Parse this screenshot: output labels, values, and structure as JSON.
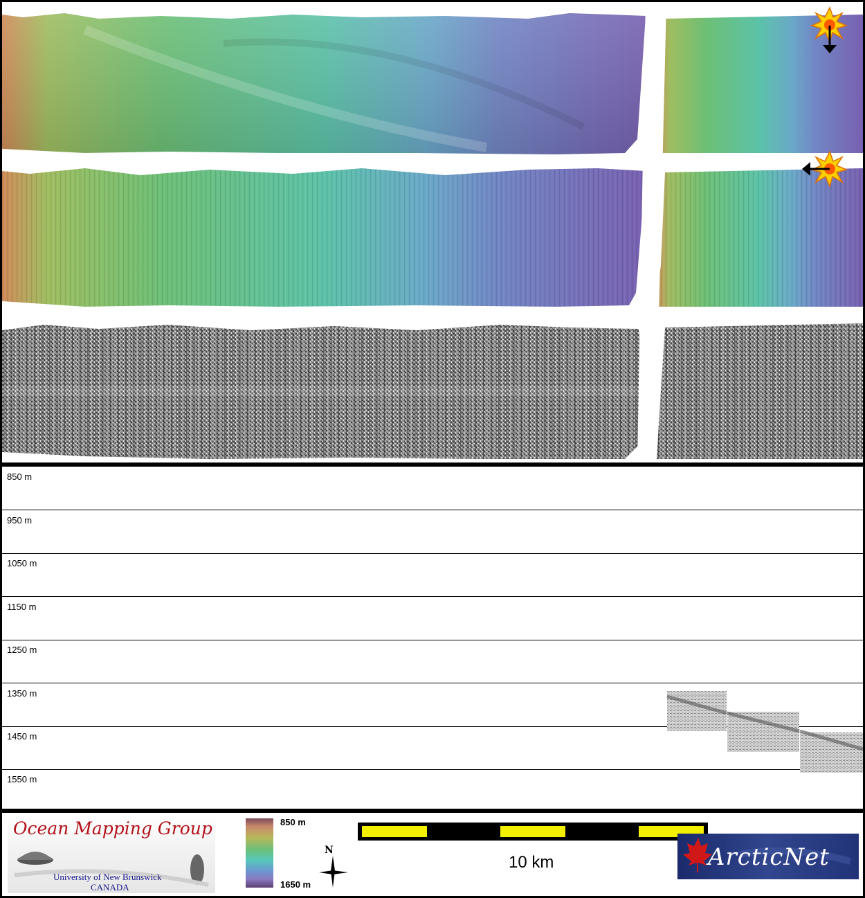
{
  "depth_scale": {
    "labels": [
      "850 m",
      "950 m",
      "1050 m",
      "1150 m",
      "1250 m",
      "1350 m",
      "1450 m",
      "1550 m"
    ]
  },
  "maps": {
    "shaded_relief_north": {
      "sun_icon": "sun-icon",
      "arrow_icon": "arrow-down-icon"
    },
    "shaded_relief_east": {
      "sun_icon": "sun-icon",
      "arrow_icon": "arrow-left-icon"
    },
    "backscatter": {}
  },
  "footer": {
    "ocean_mapping_logo": {
      "title": "Ocean Mapping Group",
      "university": "University of New Brunswick",
      "country": "CANADA"
    },
    "colorbar": {
      "top_label": "850 m",
      "bottom_label": "1650 m"
    },
    "north_arrow": {
      "label": "N"
    },
    "scale_bar": {
      "label": "10 km",
      "colors": {
        "bar": "#000000",
        "segment": "#f2ef00"
      }
    },
    "arcticnet_logo": {
      "text": "ArcticNet"
    }
  },
  "colors": {
    "frame": "#000000",
    "relief_warm": "#d08a58",
    "relief_green": "#6cbf76",
    "relief_cyan": "#55bfb5",
    "relief_blue": "#6f86c9",
    "relief_purple": "#7a66b5"
  }
}
